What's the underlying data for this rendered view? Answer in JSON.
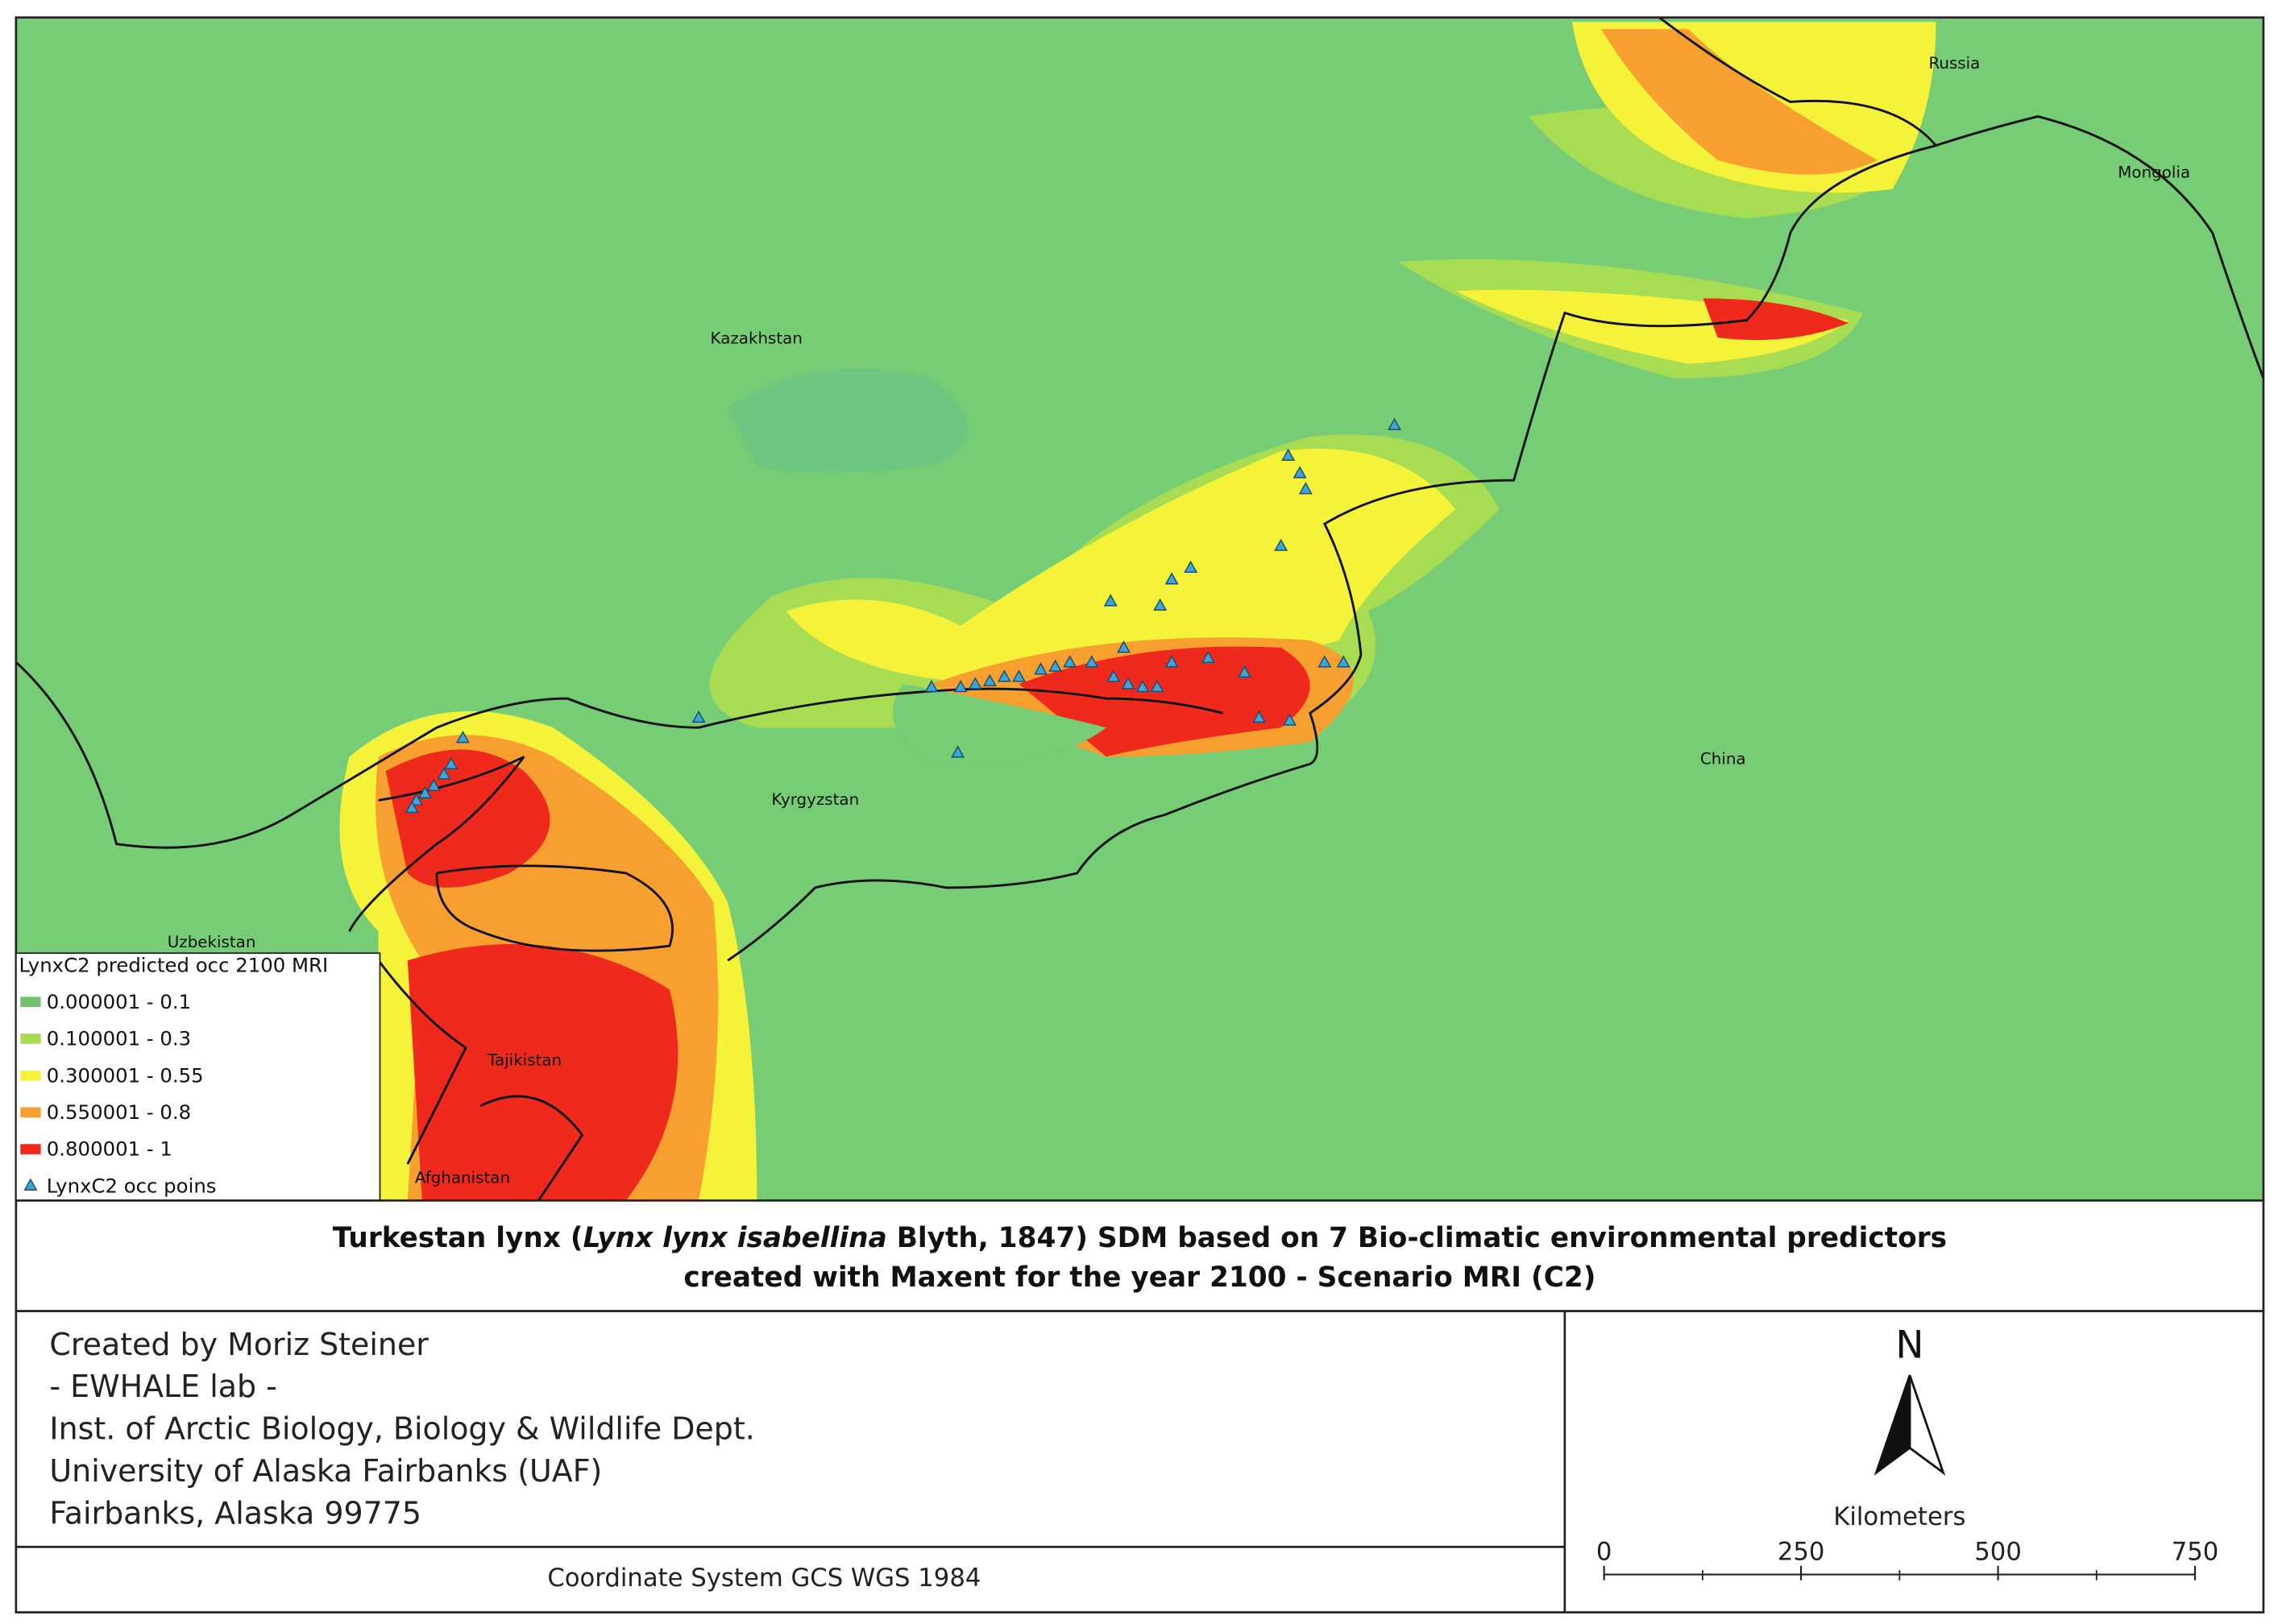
{
  "map": {
    "countries": [
      "Russia",
      "Mongolia",
      "Kazakhstan",
      "China",
      "Kyrgyzstan",
      "Uzbekistan",
      "Tajikistan",
      "Afghanistan"
    ]
  },
  "legend": {
    "title": "LynxC2 predicted occ 2100 MRI",
    "classes": [
      {
        "label": "0.000001 - 0.1",
        "color": "#72c16d"
      },
      {
        "label": "0.100001 - 0.3",
        "color": "#a8dc52"
      },
      {
        "label": "0.300001 - 0.55",
        "color": "#f5f23a"
      },
      {
        "label": "0.550001 - 0.8",
        "color": "#f7a030"
      },
      {
        "label": "0.800001 - 1",
        "color": "#ef2a1c"
      }
    ],
    "points": {
      "label": "LynxC2 occ poins",
      "color": "#3aa6dc"
    }
  },
  "title": {
    "line1_prefix": "Turkestan lynx (",
    "line1_italic": "Lynx lynx isabellina",
    "line1_suffix": " Blyth, 1847) SDM based on 7 Bio-climatic environmental predictors",
    "line2": "created with Maxent for the year 2100 - Scenario MRI (C2)"
  },
  "credits": [
    "Created by Moriz Steiner",
    "- EWHALE lab -",
    "Inst. of Arctic Biology,  Biology & Wildlife Dept.",
    "University of Alaska Fairbanks (UAF)",
    "Fairbanks, Alaska 99775"
  ],
  "coordinate_system": "Coordinate System GCS WGS 1984",
  "north_arrow": "N",
  "scale_bar": {
    "unit": "Kilometers",
    "ticks": [
      0,
      250,
      500,
      750
    ]
  }
}
